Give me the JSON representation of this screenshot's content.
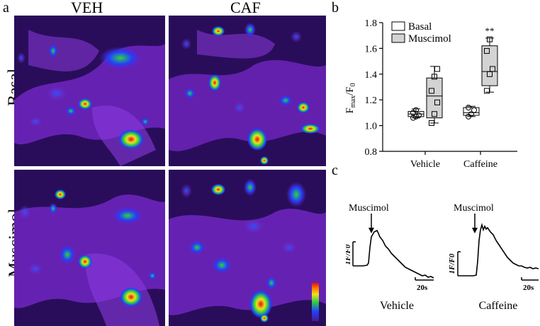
{
  "panel_a": {
    "letter": "a",
    "columns": [
      "VEH",
      "CAF"
    ],
    "rows": [
      "Basal",
      "Muscimol"
    ]
  },
  "panel_b": {
    "letter": "b",
    "legend": [
      "Basal",
      "Muscimol"
    ]
  },
  "panel_c": {
    "letter": "c",
    "traces": [
      {
        "title": "Vehicle",
        "stimulus": "Muscimol",
        "ylabel": "1F/F0",
        "scale": "20s"
      },
      {
        "title": "Caffeine",
        "stimulus": "Muscimol",
        "ylabel": "1F/F0",
        "scale": "20s"
      }
    ]
  },
  "colors": {
    "micro_bg": "#2a0d5a",
    "cell_body": "#7a2ad0",
    "hot_blue": "#2040ff",
    "hot_green": "#30d040",
    "hot_red": "#e01010",
    "box_fill_muscimol": "#d3d3d3",
    "box_fill_basal": "#ffffff"
  },
  "chart_data": [
    {
      "type": "box",
      "title": "",
      "xlabel": "",
      "ylabel": "Fmax/F0",
      "ylabel_main": "F",
      "ylabel_sub1": "max",
      "ylabel_sep": "/F",
      "ylabel_sub2": "0",
      "ylim": [
        0.8,
        1.8
      ],
      "yticks": [
        "0.8",
        "1.0",
        "1.2",
        "1.4",
        "1.6",
        "1.8"
      ],
      "categories": [
        "Vehicle",
        "Caffeine"
      ],
      "legend_position": "top",
      "series": [
        {
          "name": "Basal",
          "boxes": [
            {
              "category": "Vehicle",
              "min": 1.06,
              "q1": 1.07,
              "median": 1.09,
              "q3": 1.11,
              "max": 1.13,
              "points": [
                1.06,
                1.07,
                1.08,
                1.1,
                1.12
              ]
            },
            {
              "category": "Caffeine",
              "min": 1.07,
              "q1": 1.08,
              "median": 1.1,
              "q3": 1.14,
              "max": 1.15,
              "points": [
                1.07,
                1.09,
                1.12,
                1.14
              ]
            }
          ]
        },
        {
          "name": "Muscimol",
          "boxes": [
            {
              "category": "Vehicle",
              "min": 1.02,
              "q1": 1.06,
              "median": 1.23,
              "q3": 1.37,
              "max": 1.46,
              "points": [
                1.02,
                1.09,
                1.18,
                1.27,
                1.38,
                1.44
              ]
            },
            {
              "category": "Caffeine",
              "min": 1.26,
              "q1": 1.31,
              "median": 1.42,
              "q3": 1.62,
              "max": 1.68,
              "points": [
                1.27,
                1.4,
                1.44,
                1.58,
                1.67
              ]
            }
          ]
        }
      ],
      "annotations": [
        {
          "category": "Caffeine",
          "series": "Muscimol",
          "text": "**"
        }
      ]
    }
  ]
}
